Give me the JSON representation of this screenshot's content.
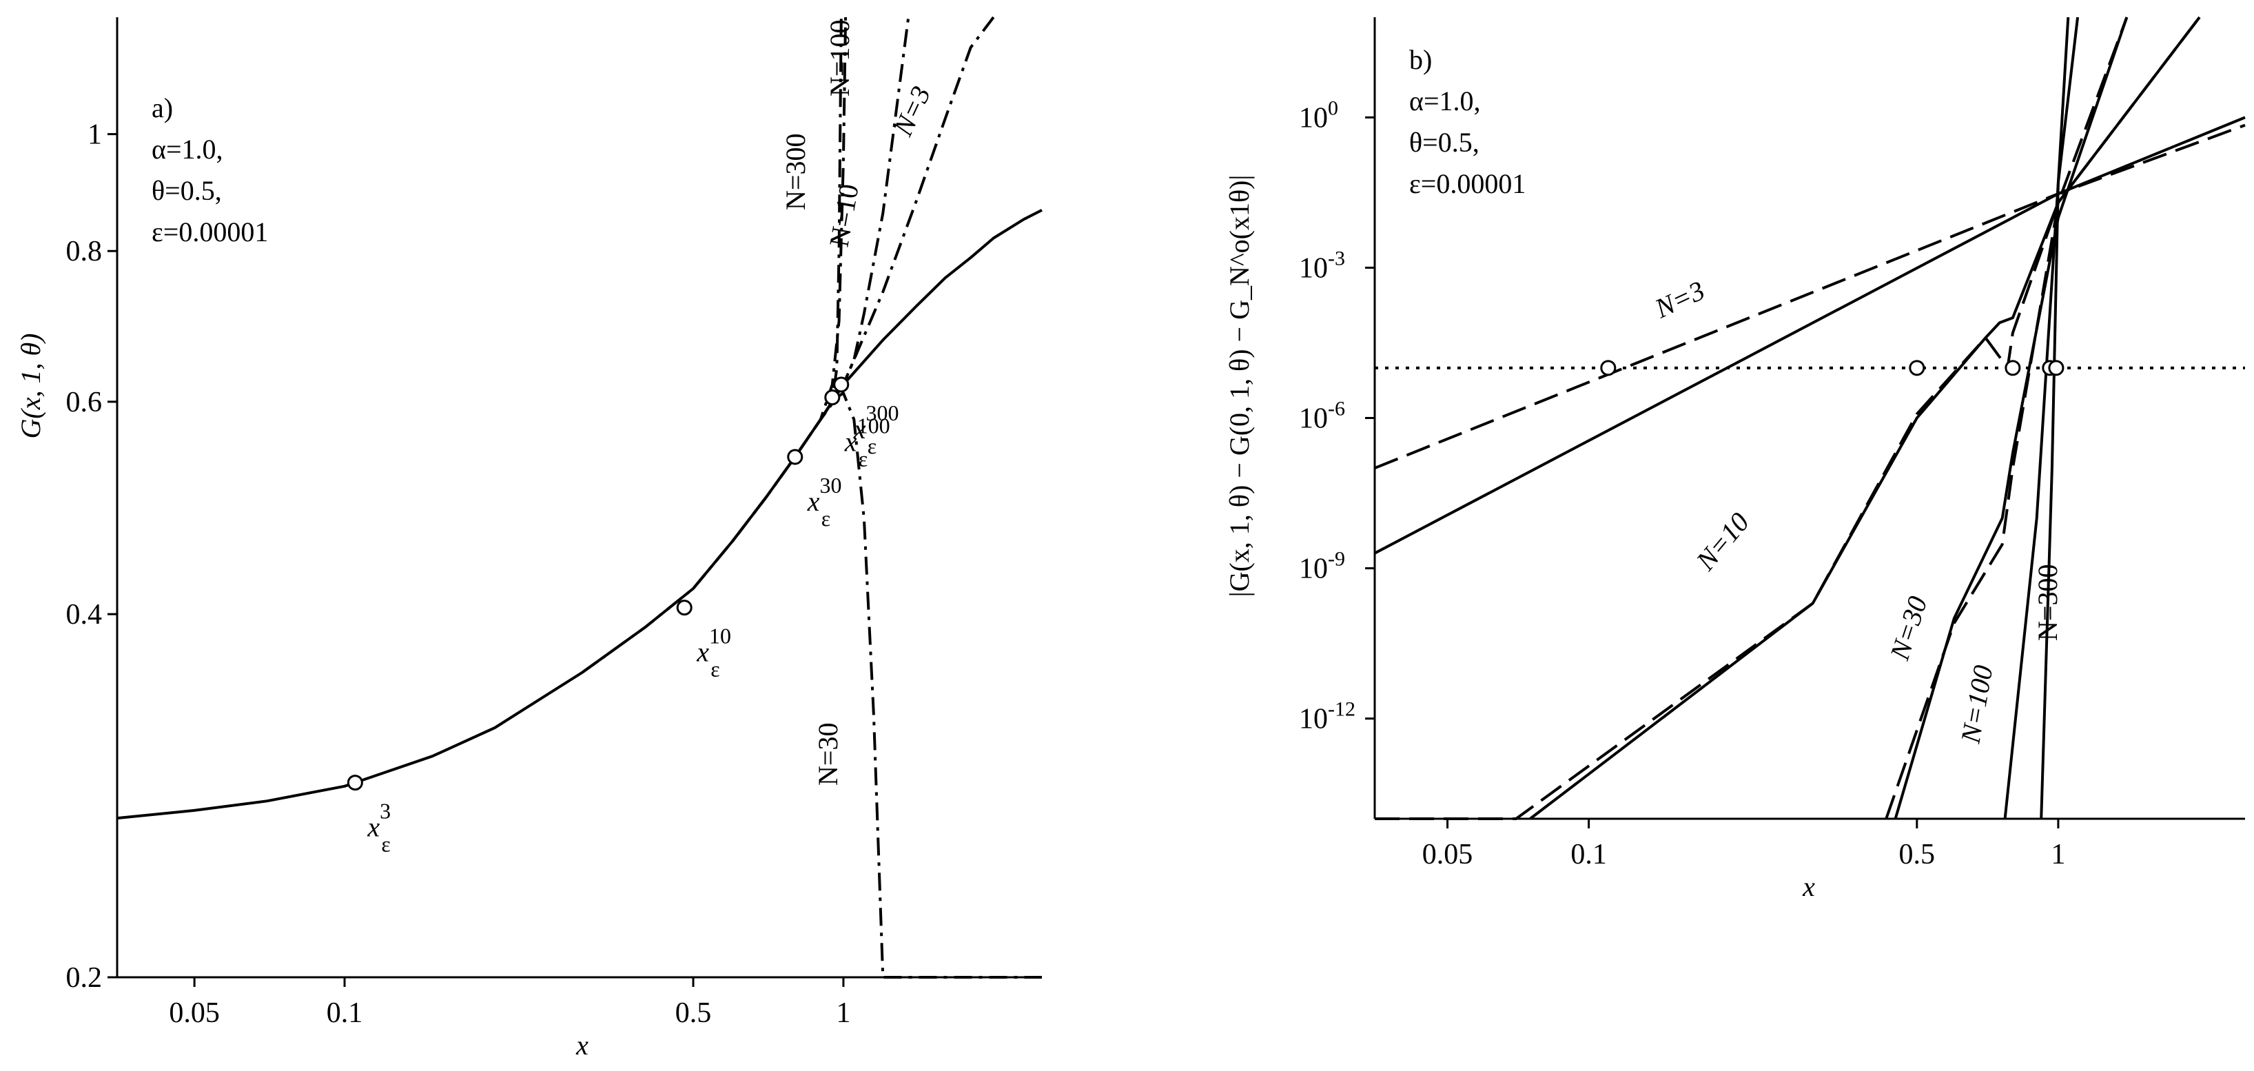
{
  "chart_data": [
    {
      "type": "line",
      "panel_label": "a)",
      "params": [
        "α=1.0,",
        "θ=0.5,",
        "ε=0.00001"
      ],
      "xlabel": "x",
      "ylabel": "G(x, 1, θ)",
      "xscale": "log",
      "yscale": "log",
      "xlim": [
        0.035,
        2.5
      ],
      "ylim": [
        0.2,
        1.25
      ],
      "xticks": [
        {
          "value": 0.05,
          "label": "0.05"
        },
        {
          "value": 0.1,
          "label": "0.1"
        },
        {
          "value": 0.5,
          "label": "0.5"
        },
        {
          "value": 1,
          "label": "1"
        }
      ],
      "yticks": [
        {
          "value": 0.2,
          "label": "0.2"
        },
        {
          "value": 0.4,
          "label": "0.4"
        },
        {
          "value": 0.6,
          "label": "0.6"
        },
        {
          "value": 0.8,
          "label": "0.8"
        },
        {
          "value": 1,
          "label": "1"
        }
      ],
      "series": [
        {
          "name": "G(x,1,θ)",
          "style": "solid",
          "x": [
            0.035,
            0.05,
            0.07,
            0.1,
            0.15,
            0.2,
            0.3,
            0.4,
            0.5,
            0.6,
            0.7,
            0.8,
            0.9,
            1.0,
            1.2,
            1.4,
            1.6,
            1.8,
            2.0,
            2.3,
            2.5
          ],
          "y": [
            0.271,
            0.275,
            0.28,
            0.288,
            0.305,
            0.322,
            0.358,
            0.39,
            0.42,
            0.46,
            0.5,
            0.54,
            0.58,
            0.62,
            0.675,
            0.72,
            0.76,
            0.79,
            0.82,
            0.85,
            0.865
          ]
        },
        {
          "name": "N=3",
          "style": "dashdot",
          "x": [
            0.3,
            0.4,
            0.5,
            0.6,
            0.7,
            0.8,
            0.9,
            1.0,
            1.2,
            1.4,
            1.6,
            1.8,
            2.0
          ],
          "y": [
            0.358,
            0.39,
            0.42,
            0.46,
            0.5,
            0.54,
            0.58,
            0.62,
            0.74,
            0.88,
            1.03,
            1.18,
            1.3
          ]
        },
        {
          "name": "N=10",
          "style": "dashdot",
          "x": [
            0.5,
            0.6,
            0.7,
            0.8,
            0.9,
            1.0,
            1.05,
            1.1,
            1.2,
            1.35
          ],
          "y": [
            0.42,
            0.46,
            0.5,
            0.54,
            0.58,
            0.62,
            0.65,
            0.71,
            0.86,
            1.3
          ]
        },
        {
          "name": "N=30",
          "style": "dashdot",
          "x": [
            0.6,
            0.7,
            0.8,
            0.9,
            0.97,
            1.0,
            1.05,
            1.1,
            1.15,
            1.2,
            1.4,
            1.8,
            2.2,
            2.5
          ],
          "y": [
            0.46,
            0.5,
            0.54,
            0.58,
            0.605,
            0.61,
            0.58,
            0.48,
            0.33,
            0.2,
            0.2,
            0.2,
            0.2,
            0.2
          ]
        },
        {
          "name": "N=100",
          "style": "dashdot",
          "x": [
            0.8,
            0.9,
            0.95,
            0.98,
            1.0,
            1.01
          ],
          "y": [
            0.54,
            0.58,
            0.62,
            0.7,
            0.95,
            1.3
          ]
        },
        {
          "name": "N=300",
          "style": "dashdot",
          "x": [
            0.9,
            0.95,
            0.97,
            0.98,
            0.99
          ],
          "y": [
            0.58,
            0.6,
            0.64,
            0.8,
            1.3
          ]
        }
      ],
      "markers": [
        {
          "name": "x_ε^3",
          "base": "x",
          "sub": "ε",
          "sup": "3",
          "x": 0.105,
          "y": 0.29
        },
        {
          "name": "x_ε^10",
          "base": "x",
          "sub": "ε",
          "sup": "10",
          "x": 0.48,
          "y": 0.405
        },
        {
          "name": "x_ε^30",
          "base": "x",
          "sub": "ε",
          "sup": "30",
          "x": 0.8,
          "y": 0.54
        },
        {
          "name": "x_ε^100",
          "base": "x",
          "sub": "ε",
          "sup": "100",
          "x": 0.95,
          "y": 0.605
        },
        {
          "name": "x_ε^300",
          "base": "x",
          "sub": "ε",
          "sup": "300",
          "x": 0.99,
          "y": 0.62
        }
      ],
      "curve_labels": [
        "N=3",
        "N=10",
        "N=30",
        "N=100",
        "N=300"
      ]
    },
    {
      "type": "line",
      "panel_label": "b)",
      "params": [
        "α=1.0,",
        "θ=0.5,",
        "ε=0.00001"
      ],
      "xlabel": "x",
      "ylabel": "|G(x, 1, θ) − G(0, 1, θ) − G_N^o(x1θ)|",
      "xscale": "log",
      "yscale": "log",
      "xlim": [
        0.035,
        2.5
      ],
      "ylim": [
        1e-14,
        100
      ],
      "xticks": [
        {
          "value": 0.05,
          "label": "0.05"
        },
        {
          "value": 0.1,
          "label": "0.1"
        },
        {
          "value": 0.5,
          "label": "0.5"
        },
        {
          "value": 1,
          "label": "1"
        }
      ],
      "yticks": [
        {
          "exp": -12,
          "label": "10",
          "sup": "-12"
        },
        {
          "exp": -9,
          "label": "10",
          "sup": "-9"
        },
        {
          "exp": -6,
          "label": "10",
          "sup": "-6"
        },
        {
          "exp": -3,
          "label": "10",
          "sup": "-3"
        },
        {
          "exp": 0,
          "label": "10",
          "sup": "0"
        }
      ],
      "epsilon_line": {
        "value": 1e-05,
        "style": "dotted"
      },
      "series": [
        {
          "name": "N=3 solid",
          "style": "solid",
          "x": [
            0.035,
            1.0,
            2.5
          ],
          "y": [
            2e-09,
            0.03,
            1.0
          ]
        },
        {
          "name": "N=3 dashed",
          "style": "dashed",
          "x": [
            0.035,
            1.0,
            2.5
          ],
          "y": [
            1e-07,
            0.03,
            0.7
          ]
        },
        {
          "name": "N=10 solid",
          "style": "solid",
          "x": [
            0.075,
            0.3,
            0.5,
            0.7,
            0.75,
            0.8,
            1.0,
            2.0
          ],
          "y": [
            1e-14,
            2e-10,
            1e-06,
            4e-05,
            8e-05,
            0.0001,
            0.02,
            100
          ]
        },
        {
          "name": "N=10 dashed",
          "style": "dashed",
          "x": [
            0.035,
            0.07,
            0.3,
            0.5,
            0.7,
            0.78,
            0.8,
            1.0,
            2.0
          ],
          "y": [
            1e-14,
            1e-14,
            2e-10,
            1.2e-06,
            4e-05,
            1e-05,
            5e-05,
            0.02,
            100
          ]
        },
        {
          "name": "N=30 solid",
          "style": "solid",
          "x": [
            0.45,
            0.6,
            0.76,
            0.8,
            1.0,
            1.4
          ],
          "y": [
            1e-14,
            1e-10,
            1e-08,
            2e-07,
            0.01,
            100
          ]
        },
        {
          "name": "N=30 dashed",
          "style": "dashed",
          "x": [
            0.43,
            0.6,
            0.76,
            0.8,
            1.0,
            1.4
          ],
          "y": [
            1e-14,
            8e-11,
            3e-09,
            1e-07,
            0.02,
            100
          ]
        },
        {
          "name": "N=100",
          "style": "solid",
          "x": [
            0.77,
            0.9,
            1.0,
            1.1
          ],
          "y": [
            1e-14,
            1e-08,
            0.05,
            100
          ]
        },
        {
          "name": "N=300",
          "style": "solid",
          "x": [
            0.92,
            0.97,
            1.0,
            1.05
          ],
          "y": [
            1e-14,
            1e-07,
            0.05,
            100
          ]
        }
      ],
      "markers": [
        {
          "x": 0.11,
          "y": 1e-05
        },
        {
          "x": 0.5,
          "y": 1e-05
        },
        {
          "x": 0.8,
          "y": 1e-05
        },
        {
          "x": 0.96,
          "y": 1e-05
        },
        {
          "x": 0.99,
          "y": 1e-05
        }
      ],
      "curve_labels": [
        "N=3",
        "N=10",
        "N=30",
        "N=100",
        "N=300"
      ]
    }
  ]
}
